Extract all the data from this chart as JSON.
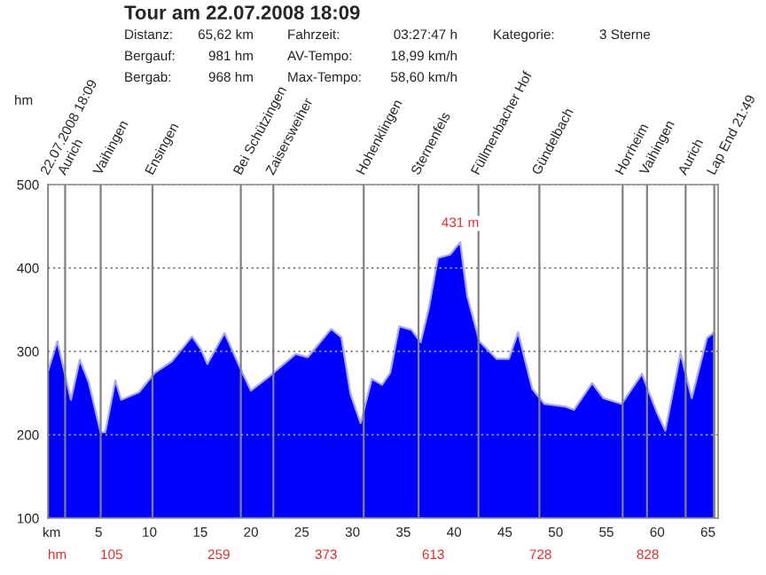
{
  "chart_data": {
    "type": "area",
    "title": "Tour am 22.07.2008 18:09",
    "xlabel": "km",
    "x": [
      0,
      0.93,
      2.27,
      3.14,
      4.02,
      5.19,
      5.65,
      6.64,
      7.22,
      8.97,
      10.5,
      12.2,
      14.2,
      15.1,
      15.7,
      17.4,
      18.9,
      20.0,
      21.8,
      24.4,
      25.6,
      27.9,
      28.9,
      29.8,
      30.8,
      31.9,
      32.9,
      33.7,
      34.6,
      35.8,
      36.7,
      37.5,
      38.4,
      39.6,
      40.6,
      41.3,
      42.5,
      44.2,
      45.4,
      46.3,
      47.7,
      48.9,
      50.9,
      51.8,
      53.6,
      54.7,
      56.5,
      58.5,
      60.0,
      60.8,
      62.3,
      63.4,
      64.9,
      65.62
    ],
    "series": [
      {
        "color": "#0000ff",
        "values": [
          276,
          312,
          242,
          290,
          263,
          203,
          203,
          265,
          242,
          251,
          274,
          288,
          318,
          302,
          285,
          322,
          281,
          253,
          270,
          297,
          293,
          327,
          317,
          249,
          214,
          267,
          260,
          274,
          330,
          326,
          311,
          351,
          412,
          416,
          431,
          366,
          312,
          291,
          291,
          323,
          255,
          237,
          234,
          230,
          262,
          244,
          237,
          273,
          226,
          205,
          298,
          244,
          316,
          323
        ]
      }
    ],
    "xlim": [
      0,
      66
    ],
    "xticks": [
      5,
      10,
      15,
      20,
      25,
      30,
      35,
      40,
      45,
      50,
      55,
      60,
      65
    ],
    "ylim": [
      100,
      500
    ],
    "yticks": [
      100,
      200,
      300,
      400,
      500
    ],
    "grid": "y",
    "ref_lines": [
      {
        "axis": "x",
        "value": 0,
        "color": "#808080"
      },
      {
        "axis": "x",
        "value": 1.7,
        "label": "Aurich",
        "color": "#808080"
      },
      {
        "axis": "x",
        "value": 5.2,
        "label": "Vaihingen",
        "color": "#808080"
      },
      {
        "axis": "x",
        "value": 10.3,
        "label": "Ensingen",
        "color": "#808080"
      },
      {
        "axis": "x",
        "value": 19.0,
        "label": "Bei Schützingen",
        "color": "#808080"
      },
      {
        "axis": "x",
        "value": 22.2,
        "label": "Zaisersweiher",
        "color": "#808080"
      },
      {
        "axis": "x",
        "value": 31.1,
        "label": "Hohenklingen",
        "color": "#808080"
      },
      {
        "axis": "x",
        "value": 36.5,
        "label": "Sternenfels",
        "color": "#808080"
      },
      {
        "axis": "x",
        "value": 42.4,
        "label": "Füllmenbacher Hof",
        "color": "#808080"
      },
      {
        "axis": "x",
        "value": 48.4,
        "label": "Gündelbach",
        "color": "#808080"
      },
      {
        "axis": "x",
        "value": 56.6,
        "label": "Horrheim",
        "color": "#808080"
      },
      {
        "axis": "x",
        "value": 59.0,
        "label": "Vaihingen",
        "color": "#808080"
      },
      {
        "axis": "x",
        "value": 62.8,
        "label": "Aurich",
        "color": "#808080"
      },
      {
        "axis": "x",
        "value": 65.62,
        "color": "#808080"
      }
    ],
    "annotations": [
      "Distanz:",
      "65,62 km",
      "Fahrzeit:",
      "03:27:47 h",
      "Kategorie:",
      "3 Sterne",
      "Bergauf:",
      "981 hm",
      "AV-Tempo:",
      "18,99 km/h",
      "Bergab:",
      "968 hm",
      "Max-Tempo:",
      "58,60 km/h",
      "hm",
      "hm",
      "105",
      "259",
      "373",
      "613",
      "728",
      "828",
      {
        "text": "431 m",
        "x": 40.6,
        "y": 431
      },
      {
        "text": "22.07.2008 18:09",
        "x": 0,
        "y": 500
      },
      {
        "text": "Lap End 21:49",
        "x": 65.62,
        "y": 500
      }
    ]
  }
}
